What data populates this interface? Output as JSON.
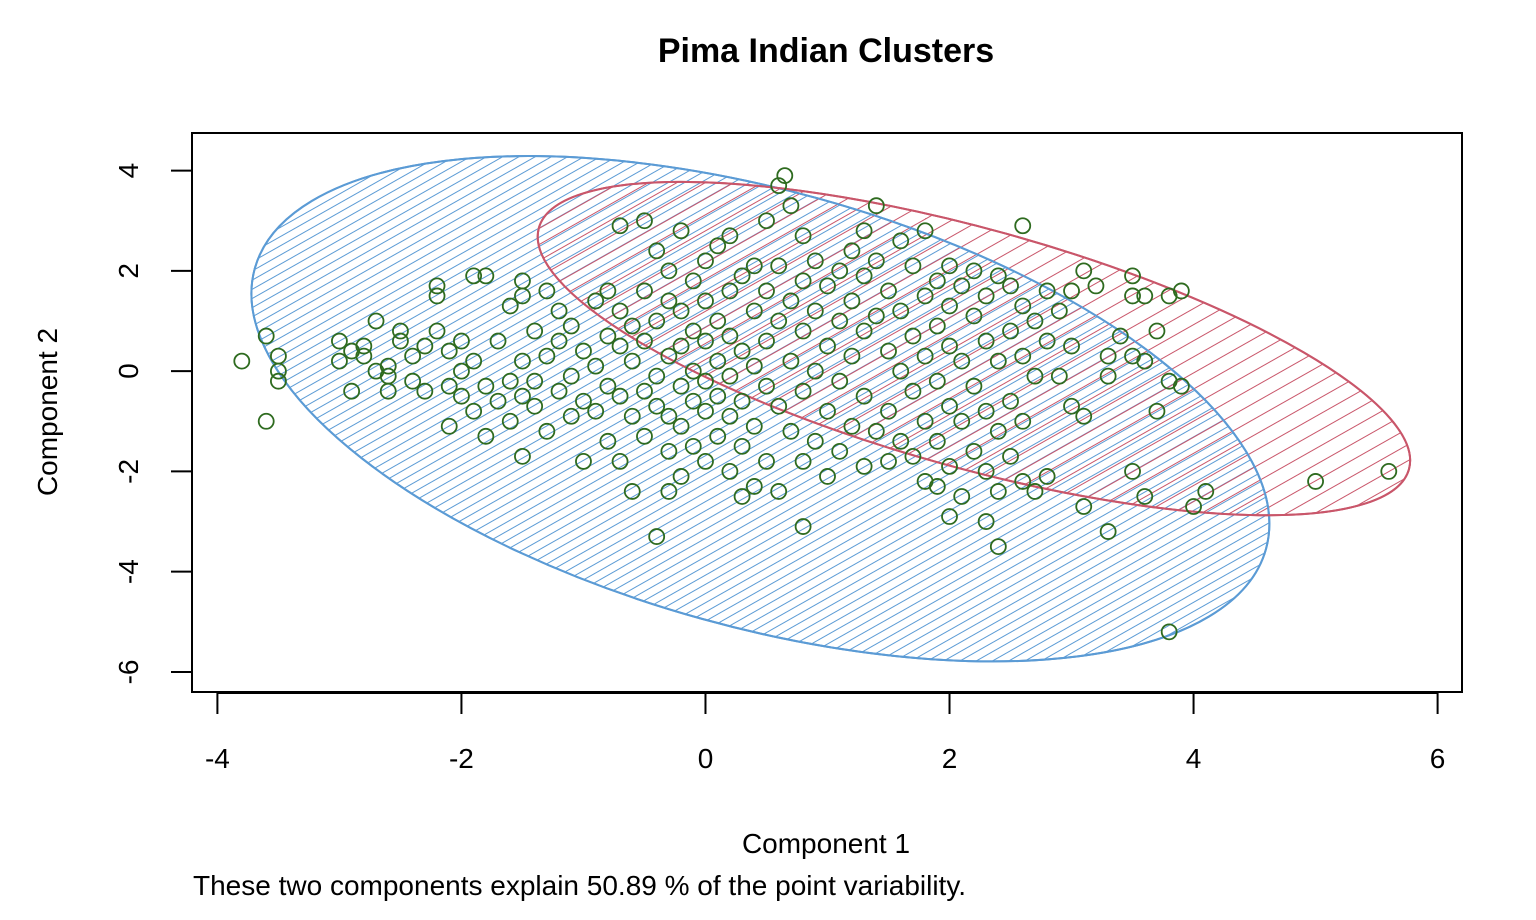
{
  "chart_data": {
    "type": "scatter",
    "title": "Pima Indian Clusters",
    "xlabel": "Component 1",
    "ylabel": "Component 2",
    "subtitle": "These two components explain 50.89 % of the point variability.",
    "xlim": [
      -4.2,
      6.2
    ],
    "ylim": [
      -6.4,
      4.75
    ],
    "xticks": [
      -4,
      -2,
      0,
      2,
      4,
      6
    ],
    "yticks": [
      -6,
      -4,
      -2,
      0,
      2,
      4
    ],
    "colors": {
      "points": "#2e6b1f",
      "cluster_1": "#5b9bd5",
      "cluster_2": "#c9566a",
      "frame": "#000000"
    },
    "clusters": [
      {
        "center": [
          0.45,
          -0.75
        ],
        "semi_axes": [
          4.3,
          4.35
        ],
        "rotation_deg": -15.5,
        "shading": "dense diagonal hatch"
      },
      {
        "center": [
          2.2,
          0.45
        ],
        "semi_axes": [
          3.7,
          2.38
        ],
        "rotation_deg": -15.5,
        "shading": "sparse diagonal hatch"
      }
    ],
    "points": [
      [
        -3.8,
        0.2
      ],
      [
        -3.6,
        0.7
      ],
      [
        -3.6,
        -1.0
      ],
      [
        -3.5,
        0.3
      ],
      [
        -3.5,
        -0.2
      ],
      [
        -3.5,
        0.0
      ],
      [
        -3.0,
        0.6
      ],
      [
        -3.0,
        0.2
      ],
      [
        -2.9,
        0.4
      ],
      [
        -2.9,
        -0.4
      ],
      [
        -2.8,
        0.5
      ],
      [
        -2.8,
        0.3
      ],
      [
        -2.7,
        1.0
      ],
      [
        -2.7,
        0.0
      ],
      [
        -2.6,
        -0.1
      ],
      [
        -2.6,
        0.1
      ],
      [
        -2.6,
        -0.4
      ],
      [
        -2.5,
        0.8
      ],
      [
        -2.5,
        0.6
      ],
      [
        -2.4,
        0.3
      ],
      [
        -2.4,
        -0.2
      ],
      [
        -2.3,
        0.5
      ],
      [
        -2.3,
        -0.4
      ],
      [
        -2.2,
        1.5
      ],
      [
        -2.2,
        1.7
      ],
      [
        -2.2,
        0.8
      ],
      [
        -2.1,
        0.4
      ],
      [
        -2.1,
        -0.3
      ],
      [
        -2.1,
        -1.1
      ],
      [
        -2.0,
        0.0
      ],
      [
        -2.0,
        0.6
      ],
      [
        -2.0,
        -0.5
      ],
      [
        -1.9,
        1.9
      ],
      [
        -1.9,
        0.2
      ],
      [
        -1.9,
        -0.8
      ],
      [
        -1.8,
        1.9
      ],
      [
        -1.8,
        -0.3
      ],
      [
        -1.8,
        -1.3
      ],
      [
        -1.7,
        0.6
      ],
      [
        -1.7,
        -0.6
      ],
      [
        -1.6,
        1.3
      ],
      [
        -1.6,
        -0.2
      ],
      [
        -1.6,
        -1.0
      ],
      [
        -1.5,
        1.5
      ],
      [
        -1.5,
        1.8
      ],
      [
        -1.5,
        0.2
      ],
      [
        -1.5,
        -0.5
      ],
      [
        -1.5,
        -1.7
      ],
      [
        -1.4,
        0.8
      ],
      [
        -1.4,
        -0.2
      ],
      [
        -1.4,
        -0.7
      ],
      [
        -1.3,
        1.6
      ],
      [
        -1.3,
        0.3
      ],
      [
        -1.3,
        -1.2
      ],
      [
        -1.2,
        1.2
      ],
      [
        -1.2,
        0.6
      ],
      [
        -1.2,
        -0.4
      ],
      [
        -1.1,
        0.9
      ],
      [
        -1.1,
        -0.1
      ],
      [
        -1.1,
        -0.9
      ],
      [
        -1.0,
        0.4
      ],
      [
        -1.0,
        -0.6
      ],
      [
        -1.0,
        -1.8
      ],
      [
        -0.9,
        1.4
      ],
      [
        -0.9,
        0.1
      ],
      [
        -0.9,
        -0.8
      ],
      [
        -0.8,
        1.6
      ],
      [
        -0.8,
        0.7
      ],
      [
        -0.8,
        -0.3
      ],
      [
        -0.8,
        -1.4
      ],
      [
        -0.7,
        2.9
      ],
      [
        -0.7,
        1.2
      ],
      [
        -0.7,
        0.5
      ],
      [
        -0.7,
        -0.5
      ],
      [
        -0.7,
        -1.8
      ],
      [
        -0.6,
        0.9
      ],
      [
        -0.6,
        0.2
      ],
      [
        -0.6,
        -0.9
      ],
      [
        -0.6,
        -2.4
      ],
      [
        -0.5,
        3.0
      ],
      [
        -0.5,
        1.6
      ],
      [
        -0.5,
        0.6
      ],
      [
        -0.5,
        -0.4
      ],
      [
        -0.5,
        -1.3
      ],
      [
        -0.4,
        2.4
      ],
      [
        -0.4,
        1.0
      ],
      [
        -0.4,
        -0.1
      ],
      [
        -0.4,
        -0.7
      ],
      [
        -0.4,
        -3.3
      ],
      [
        -0.3,
        2.0
      ],
      [
        -0.3,
        1.4
      ],
      [
        -0.3,
        0.3
      ],
      [
        -0.3,
        -0.9
      ],
      [
        -0.3,
        -1.6
      ],
      [
        -0.3,
        -2.4
      ],
      [
        -0.2,
        2.8
      ],
      [
        -0.2,
        1.2
      ],
      [
        -0.2,
        0.5
      ],
      [
        -0.2,
        -0.3
      ],
      [
        -0.2,
        -1.1
      ],
      [
        -0.2,
        -2.1
      ],
      [
        -0.1,
        1.8
      ],
      [
        -0.1,
        0.8
      ],
      [
        -0.1,
        0.0
      ],
      [
        -0.1,
        -0.6
      ],
      [
        -0.1,
        -1.5
      ],
      [
        0.0,
        2.2
      ],
      [
        0.0,
        1.4
      ],
      [
        0.0,
        0.6
      ],
      [
        0.0,
        -0.2
      ],
      [
        0.0,
        -0.8
      ],
      [
        0.0,
        -1.8
      ],
      [
        0.1,
        2.5
      ],
      [
        0.1,
        1.0
      ],
      [
        0.1,
        0.2
      ],
      [
        0.1,
        -0.5
      ],
      [
        0.1,
        -1.3
      ],
      [
        0.2,
        2.7
      ],
      [
        0.2,
        1.6
      ],
      [
        0.2,
        0.7
      ],
      [
        0.2,
        -0.1
      ],
      [
        0.2,
        -0.9
      ],
      [
        0.2,
        -2.0
      ],
      [
        0.3,
        1.9
      ],
      [
        0.3,
        0.4
      ],
      [
        0.3,
        -0.6
      ],
      [
        0.3,
        -1.5
      ],
      [
        0.3,
        -2.5
      ],
      [
        0.4,
        2.1
      ],
      [
        0.4,
        1.2
      ],
      [
        0.4,
        0.1
      ],
      [
        0.4,
        -1.1
      ],
      [
        0.4,
        -2.3
      ],
      [
        0.5,
        3.0
      ],
      [
        0.5,
        1.6
      ],
      [
        0.5,
        0.6
      ],
      [
        0.5,
        -0.3
      ],
      [
        0.5,
        -1.8
      ],
      [
        0.6,
        3.7
      ],
      [
        0.6,
        2.1
      ],
      [
        0.6,
        1.0
      ],
      [
        0.6,
        -0.7
      ],
      [
        0.6,
        -2.4
      ],
      [
        0.65,
        3.9
      ],
      [
        0.7,
        3.3
      ],
      [
        0.7,
        1.4
      ],
      [
        0.7,
        0.2
      ],
      [
        0.7,
        -1.2
      ],
      [
        0.8,
        2.7
      ],
      [
        0.8,
        1.8
      ],
      [
        0.8,
        0.8
      ],
      [
        0.8,
        -0.4
      ],
      [
        0.8,
        -1.8
      ],
      [
        0.8,
        -3.1
      ],
      [
        0.9,
        2.2
      ],
      [
        0.9,
        1.2
      ],
      [
        0.9,
        0.0
      ],
      [
        0.9,
        -1.4
      ],
      [
        1.0,
        1.7
      ],
      [
        1.0,
        0.5
      ],
      [
        1.0,
        -0.8
      ],
      [
        1.0,
        -2.1
      ],
      [
        1.1,
        2.0
      ],
      [
        1.1,
        1.0
      ],
      [
        1.1,
        -0.2
      ],
      [
        1.1,
        -1.6
      ],
      [
        1.2,
        2.4
      ],
      [
        1.2,
        1.4
      ],
      [
        1.2,
        0.3
      ],
      [
        1.2,
        -1.1
      ],
      [
        1.3,
        2.8
      ],
      [
        1.3,
        1.9
      ],
      [
        1.3,
        0.8
      ],
      [
        1.3,
        -0.5
      ],
      [
        1.3,
        -1.9
      ],
      [
        1.4,
        3.3
      ],
      [
        1.4,
        2.2
      ],
      [
        1.4,
        1.1
      ],
      [
        1.4,
        -1.2
      ],
      [
        1.5,
        1.6
      ],
      [
        1.5,
        0.4
      ],
      [
        1.5,
        -0.8
      ],
      [
        1.5,
        -1.8
      ],
      [
        1.6,
        2.6
      ],
      [
        1.6,
        1.2
      ],
      [
        1.6,
        0.0
      ],
      [
        1.6,
        -1.4
      ],
      [
        1.7,
        2.1
      ],
      [
        1.7,
        0.7
      ],
      [
        1.7,
        -0.4
      ],
      [
        1.7,
        -1.7
      ],
      [
        1.8,
        2.8
      ],
      [
        1.8,
        1.5
      ],
      [
        1.8,
        0.3
      ],
      [
        1.8,
        -1.0
      ],
      [
        1.8,
        -2.2
      ],
      [
        1.9,
        1.8
      ],
      [
        1.9,
        0.9
      ],
      [
        1.9,
        -0.2
      ],
      [
        1.9,
        -1.4
      ],
      [
        1.9,
        -2.3
      ],
      [
        2.0,
        2.1
      ],
      [
        2.0,
        1.3
      ],
      [
        2.0,
        0.5
      ],
      [
        2.0,
        -0.7
      ],
      [
        2.0,
        -1.9
      ],
      [
        2.0,
        -2.9
      ],
      [
        2.1,
        1.7
      ],
      [
        2.1,
        0.2
      ],
      [
        2.1,
        -1.0
      ],
      [
        2.1,
        -2.5
      ],
      [
        2.2,
        2.0
      ],
      [
        2.2,
        1.1
      ],
      [
        2.2,
        -0.3
      ],
      [
        2.2,
        -1.6
      ],
      [
        2.3,
        1.5
      ],
      [
        2.3,
        0.6
      ],
      [
        2.3,
        -0.8
      ],
      [
        2.3,
        -2.0
      ],
      [
        2.3,
        -3.0
      ],
      [
        2.4,
        1.9
      ],
      [
        2.4,
        0.2
      ],
      [
        2.4,
        -1.2
      ],
      [
        2.4,
        -2.4
      ],
      [
        2.4,
        -3.5
      ],
      [
        2.5,
        1.7
      ],
      [
        2.5,
        0.8
      ],
      [
        2.5,
        -0.6
      ],
      [
        2.5,
        -1.7
      ],
      [
        2.6,
        2.9
      ],
      [
        2.6,
        1.3
      ],
      [
        2.6,
        0.3
      ],
      [
        2.6,
        -1.0
      ],
      [
        2.6,
        -2.2
      ],
      [
        2.7,
        1.0
      ],
      [
        2.7,
        -0.1
      ],
      [
        2.7,
        -2.4
      ],
      [
        2.8,
        1.6
      ],
      [
        2.8,
        0.6
      ],
      [
        2.8,
        -2.1
      ],
      [
        2.9,
        1.2
      ],
      [
        2.9,
        -0.1
      ],
      [
        3.0,
        1.6
      ],
      [
        3.0,
        0.5
      ],
      [
        3.0,
        -0.7
      ],
      [
        3.1,
        2.0
      ],
      [
        3.1,
        -0.9
      ],
      [
        3.1,
        -2.7
      ],
      [
        3.2,
        1.7
      ],
      [
        3.3,
        0.3
      ],
      [
        3.3,
        -0.1
      ],
      [
        3.3,
        -3.2
      ],
      [
        3.4,
        0.7
      ],
      [
        3.5,
        1.9
      ],
      [
        3.5,
        1.5
      ],
      [
        3.5,
        0.3
      ],
      [
        3.5,
        -2.0
      ],
      [
        3.6,
        1.5
      ],
      [
        3.6,
        0.2
      ],
      [
        3.6,
        -2.5
      ],
      [
        3.7,
        0.8
      ],
      [
        3.7,
        -0.8
      ],
      [
        3.8,
        1.5
      ],
      [
        3.8,
        -0.2
      ],
      [
        3.8,
        -5.2
      ],
      [
        3.9,
        1.6
      ],
      [
        3.9,
        -0.3
      ],
      [
        4.0,
        -2.7
      ],
      [
        4.1,
        -2.4
      ],
      [
        5.0,
        -2.2
      ],
      [
        5.6,
        -2.0
      ]
    ]
  }
}
